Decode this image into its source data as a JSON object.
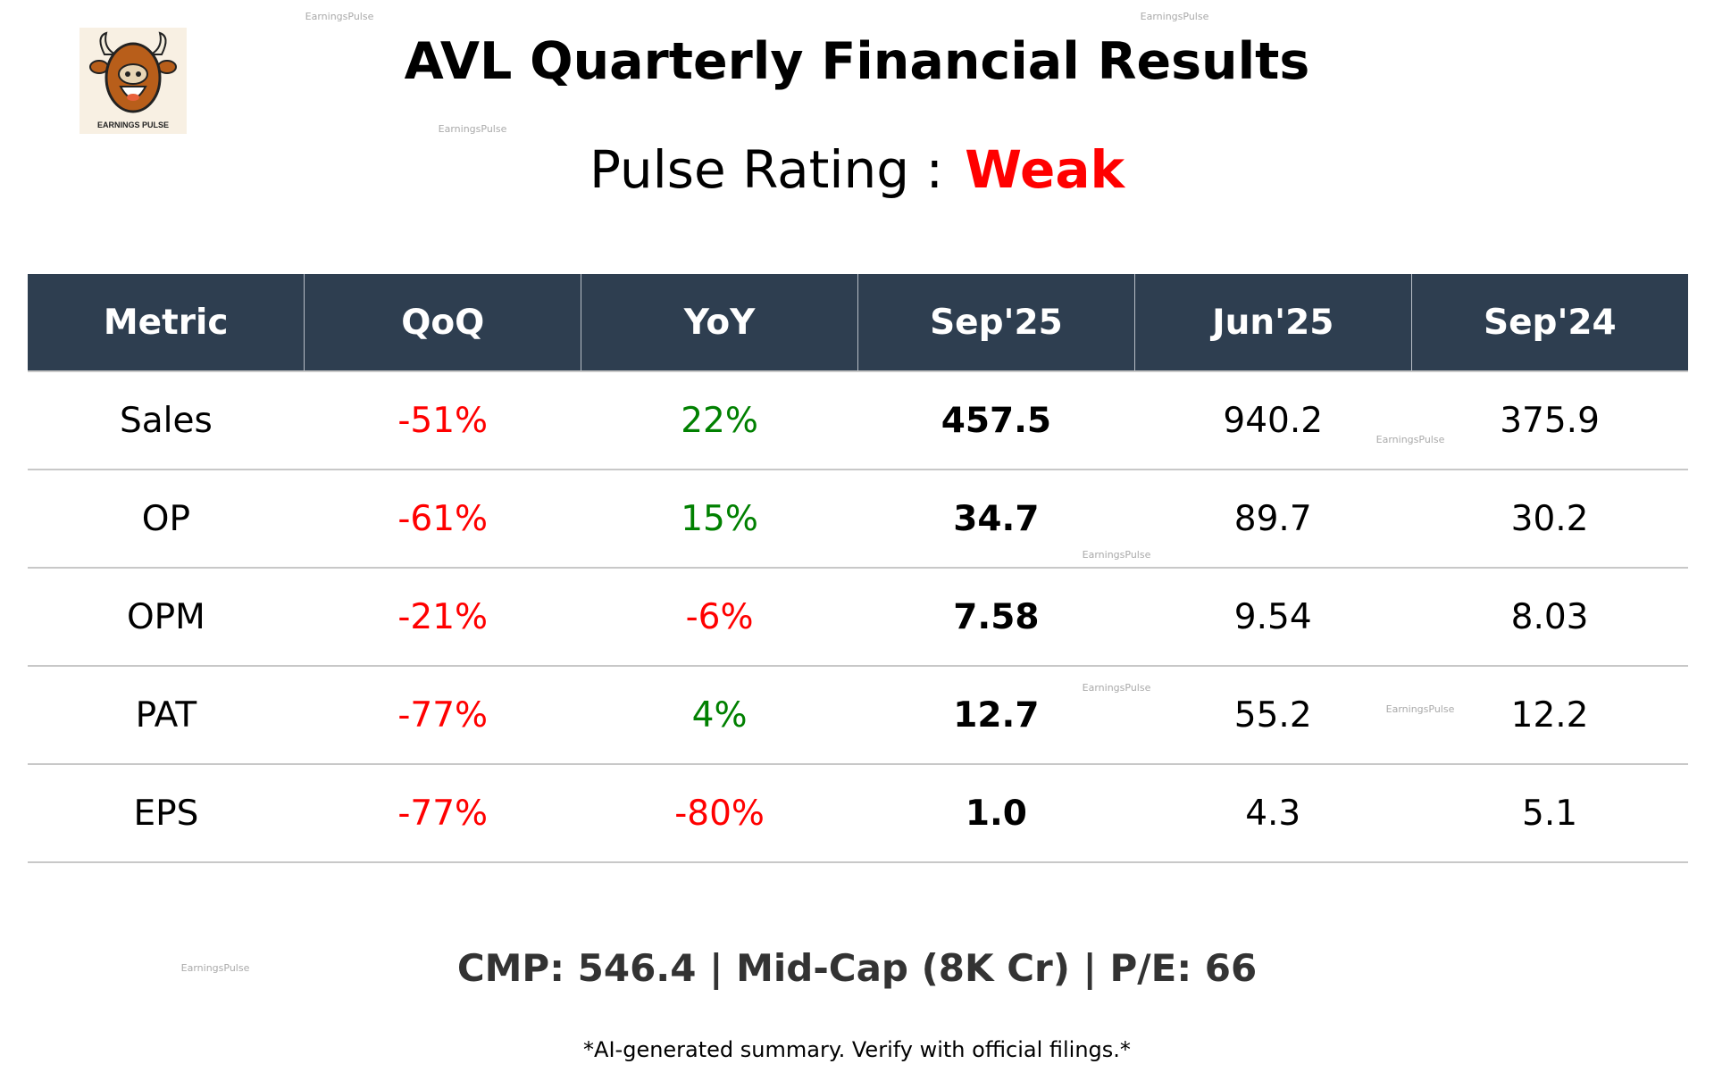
{
  "logo": {
    "text": "EARNINGS PULSE",
    "icon": "bull-mascot"
  },
  "title": "AVL Quarterly Financial Results",
  "rating": {
    "label": "Pulse Rating :",
    "value": "Weak",
    "color": "#ff0000"
  },
  "table": {
    "headers": [
      "Metric",
      "QoQ",
      "YoY",
      "Sep'25",
      "Jun'25",
      "Sep'24"
    ],
    "rows": [
      {
        "metric": "Sales",
        "qoq": "-51%",
        "yoy": "22%",
        "sep25": "457.5",
        "jun25": "940.2",
        "sep24": "375.9"
      },
      {
        "metric": "OP",
        "qoq": "-61%",
        "yoy": "15%",
        "sep25": "34.7",
        "jun25": "89.7",
        "sep24": "30.2"
      },
      {
        "metric": "OPM",
        "qoq": "-21%",
        "yoy": "-6%",
        "sep25": "7.58",
        "jun25": "9.54",
        "sep24": "8.03"
      },
      {
        "metric": "PAT",
        "qoq": "-77%",
        "yoy": "4%",
        "sep25": "12.7",
        "jun25": "55.2",
        "sep24": "12.2"
      },
      {
        "metric": "EPS",
        "qoq": "-77%",
        "yoy": "-80%",
        "sep25": "1.0",
        "jun25": "4.3",
        "sep24": "5.1"
      }
    ]
  },
  "footer": "CMP: 546.4 | Mid-Cap (8K Cr) | P/E: 66",
  "disclaimer": "*AI-generated summary. Verify with official filings.*",
  "watermark": "EarningsPulse",
  "colors": {
    "header_bg": "#2e3e50",
    "negative": "#ff0000",
    "positive": "#008000"
  }
}
